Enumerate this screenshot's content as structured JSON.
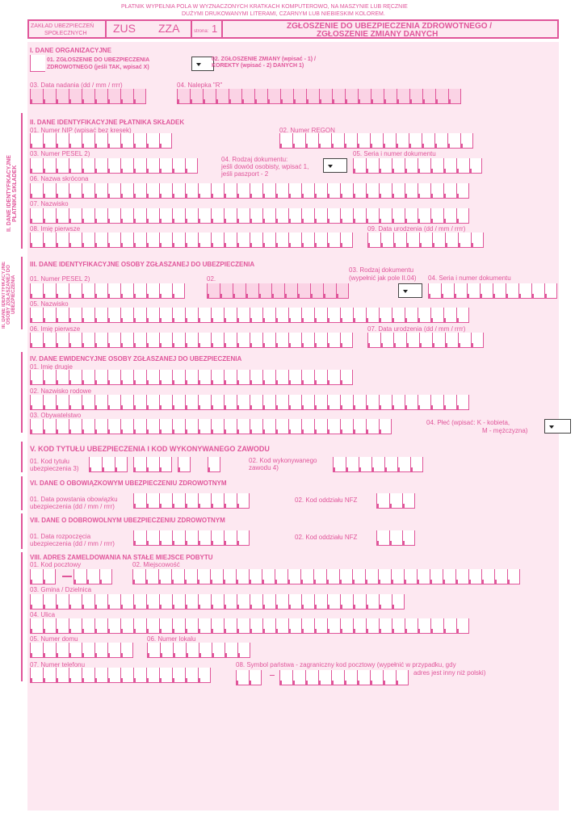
{
  "header": {
    "note_line1": "PŁATNIK WYPEŁNIA POLA W WYZNACZONYCH KRATKACH KOMPUTEROWO, NA MASZYNIE LUB RĘCZNIE",
    "note_line2": "DUŻYMI DRUKOWANYMI LITERAMI, CZARNYM LUB NIEBIESKIM KOLOREM.",
    "institution_line1": "ZAKŁAD UBEZPIECZEŃ",
    "institution_line2": "SPOŁECZNYCH",
    "zus": "ZUS",
    "form_code": "ZZA",
    "page_label": "strona:",
    "page_number": "1",
    "title_line1": "ZGŁOSZENIE DO UBEZPIECZENIA ZDROWOTNEGO /",
    "title_line2": "ZGŁOSZENIE ZMIANY DANYCH"
  },
  "s1": {
    "title": "I. DANE ORGANIZACYJNE",
    "f01_a": "01. ZGŁOSZENIE DO UBEZPIECZENIA",
    "f01_b": "ZDROWOTNEGO (jeśli TAK, wpisać X)",
    "f02_a": "02. ZGŁOSZENIE ZMIANY (wpisać - 1) /",
    "f02_b": "KOREKTY (wpisać - 2) DANYCH 1)",
    "f03": "03. Data nadania (dd / mm / rrrr)",
    "f04": "04. Nalepka \"R\""
  },
  "s2": {
    "side": "II. DANE IDENTYFIKACYJNE PŁATNIKA SKŁADEK",
    "title": "II. DANE IDENTYFIKACYJNE PŁATNIKA SKŁADEK",
    "f01": "01. Numer NIP (wpisać bez kresek)",
    "f02": "02. Numer REGON",
    "f03": "03. Numer PESEL 2)",
    "f04_a": "04. Rodzaj dokumentu:",
    "f04_b": "jeśli dowód osobisty, wpisać 1,",
    "f04_c": "jeśli paszport - 2",
    "f05": "05. Seria i numer dokumentu",
    "f06": "06. Nazwa skrócona",
    "f07": "07. Nazwisko",
    "f08": "08. Imię pierwsze",
    "f09": "09. Data urodzenia (dd / mm / rrrr)"
  },
  "s3": {
    "side": "III. DANE IDENTYFIKACYJNE OSOBY ZGŁASZANEJ DO UBEZPIECZENIA",
    "title": "III. DANE IDENTYFIKACYJNE OSOBY ZGŁASZANEJ DO UBEZPIECZENIA",
    "f01": "01. Numer PESEL 2)",
    "f02": "02.",
    "f03_a": "03. Rodzaj dokumentu",
    "f03_b": "(wypełnić jak pole II.04)",
    "f04": "04. Seria i numer dokumentu",
    "f05": "05. Nazwisko",
    "f06": "06. Imię pierwsze",
    "f07": "07. Data urodzenia (dd / mm / rrrr)"
  },
  "s4": {
    "title": "IV. DANE EWIDENCYJNE OSOBY ZGŁASZANEJ DO UBEZPIECZENIA",
    "f01": "01. Imię drugie",
    "f02": "02. Nazwisko rodowe",
    "f03": "03. Obywatelstwo",
    "f04_a": "04. Płeć (wpisać: K - kobieta,",
    "f04_b": "M - mężczyzna)"
  },
  "s5": {
    "title": "V. KOD TYTUŁU UBEZPIECZENIA I KOD WYKONYWANEGO ZAWODU",
    "f01_a": "01. Kod tytułu",
    "f01_b": "ubezpieczenia 3)",
    "f02_a": "02. Kod wykonywanego",
    "f02_b": "zawodu 4)"
  },
  "s6": {
    "title": "VI. DANE O OBOWIĄZKOWYM UBEZPIECZENIU ZDROWOTNYM",
    "f01_a": "01. Data powstania obowiązku",
    "f01_b": "ubezpieczenia (dd / mm / rrrr)",
    "f02": "02. Kod oddziału NFZ"
  },
  "s7": {
    "title": "VII. DANE O DOBROWOLNYM UBEZPIECZENIU ZDROWOTNYM",
    "f01_a": "01. Data rozpoczęcia",
    "f01_b": "ubezpieczenia (dd / mm / rrrr)",
    "f02": "02. Kod oddziału NFZ"
  },
  "s8": {
    "title": "VIII. ADRES ZAMELDOWANIA NA STAŁE MIEJSCE POBYTU",
    "f01": "01. Kod pocztowy",
    "f02": "02. Miejscowość",
    "f03": "03. Gmina / Dzielnica",
    "f04": "04. Ulica",
    "f05": "05. Numer domu",
    "f06": "06. Numer lokalu",
    "f07": "07. Numer telefonu",
    "f08_a": "08. Symbol państwa - zagraniczny kod pocztowy (wypełnić w przypadku, gdy",
    "f08_b": "adres jest inny niż polski)"
  }
}
